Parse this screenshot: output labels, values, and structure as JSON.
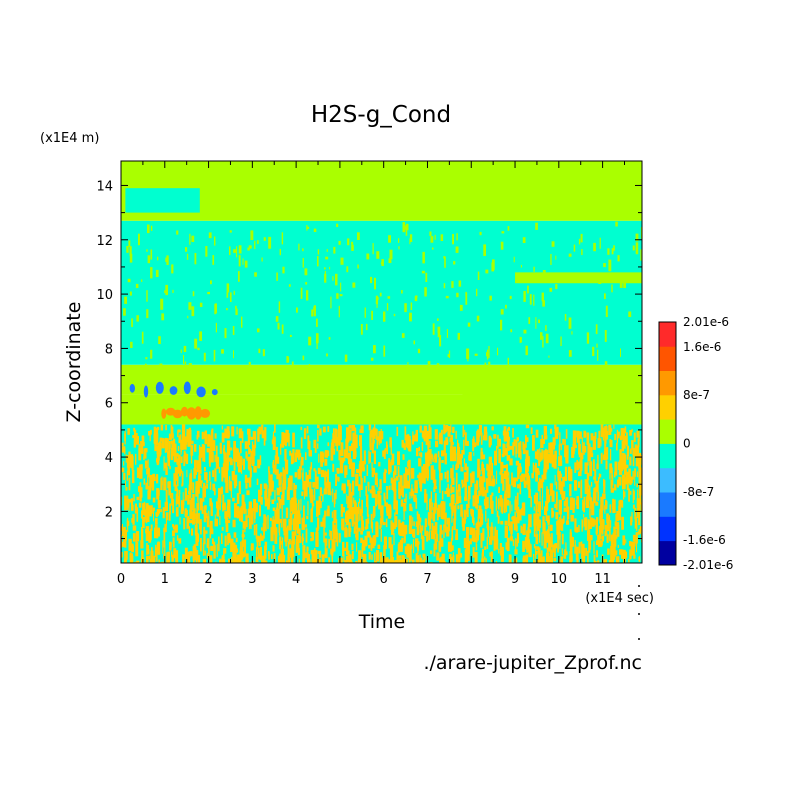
{
  "chart_data": {
    "type": "heatmap",
    "title": "H2S-g_Cond",
    "xlabel": "Time",
    "ylabel": "Z-coordinate",
    "x_unit": "(x1E4 sec)",
    "y_unit": "(x1E4 m)",
    "xlim": [
      0,
      11.9
    ],
    "ylim": [
      0.1,
      14.9
    ],
    "x_ticks": [
      "0",
      "1",
      "2",
      "3",
      "4",
      "5",
      "6",
      "7",
      "8",
      "9",
      "10",
      "11"
    ],
    "y_ticks": [
      "2",
      "4",
      "6",
      "8",
      "10",
      "12",
      "14"
    ],
    "colorbar": {
      "levels": [
        -2.01e-06,
        -1.6e-06,
        -1.2e-06,
        -8e-07,
        -4e-07,
        0,
        4e-07,
        8e-07,
        1.2e-06,
        1.6e-06,
        2.01e-06
      ],
      "tick_labels": [
        "2.01e-6",
        "1.6e-6",
        "8e-7",
        "0",
        "-8e-7",
        "-1.6e-6",
        "-2.01e-6"
      ],
      "colors": [
        "#0000a0",
        "#0033ff",
        "#1a7aff",
        "#3cbcff",
        "#00ffd0",
        "#aaff00",
        "#ffd000",
        "#ff9900",
        "#ff5500",
        "#ff2a2a"
      ]
    },
    "regions": [
      {
        "z_range": [
          0.1,
          5.2
        ],
        "x_range": [
          0,
          11.9
        ],
        "pattern": "mixed",
        "value_low": -4e-07,
        "value_high": 4e-07
      },
      {
        "z_range": [
          5.2,
          6.3
        ],
        "x_range": [
          0,
          11.9
        ],
        "value": 1e-07
      },
      {
        "z_range": [
          6.3,
          7.4
        ],
        "x_range": [
          0,
          7.8
        ],
        "value": 1e-07
      },
      {
        "z_range": [
          6.0,
          7.4
        ],
        "x_range": [
          7.8,
          11.9
        ],
        "value": 1e-07
      },
      {
        "z_range": [
          7.4,
          12.7
        ],
        "x_range": [
          0,
          11.9
        ],
        "value": -1e-07
      },
      {
        "z_range": [
          10.4,
          10.8
        ],
        "x_range": [
          9.0,
          11.9
        ],
        "value": 1e-07
      },
      {
        "z_range": [
          12.7,
          14.9
        ],
        "x_range": [
          0,
          11.9
        ],
        "value": 1e-07
      },
      {
        "z_range": [
          13.0,
          13.9
        ],
        "x_range": [
          0.1,
          1.8
        ],
        "value": -1e-07
      },
      {
        "z_range": [
          6.2,
          6.8
        ],
        "x_range": [
          0.1,
          2.3
        ],
        "pattern": "blobs",
        "value": -1.1e-06
      },
      {
        "z_range": [
          5.4,
          5.9
        ],
        "x_range": [
          0.9,
          2.0
        ],
        "pattern": "blobs",
        "value": 1e-06
      }
    ]
  },
  "footer": {
    "filename": "./arare-jupiter_Zprof.nc"
  }
}
